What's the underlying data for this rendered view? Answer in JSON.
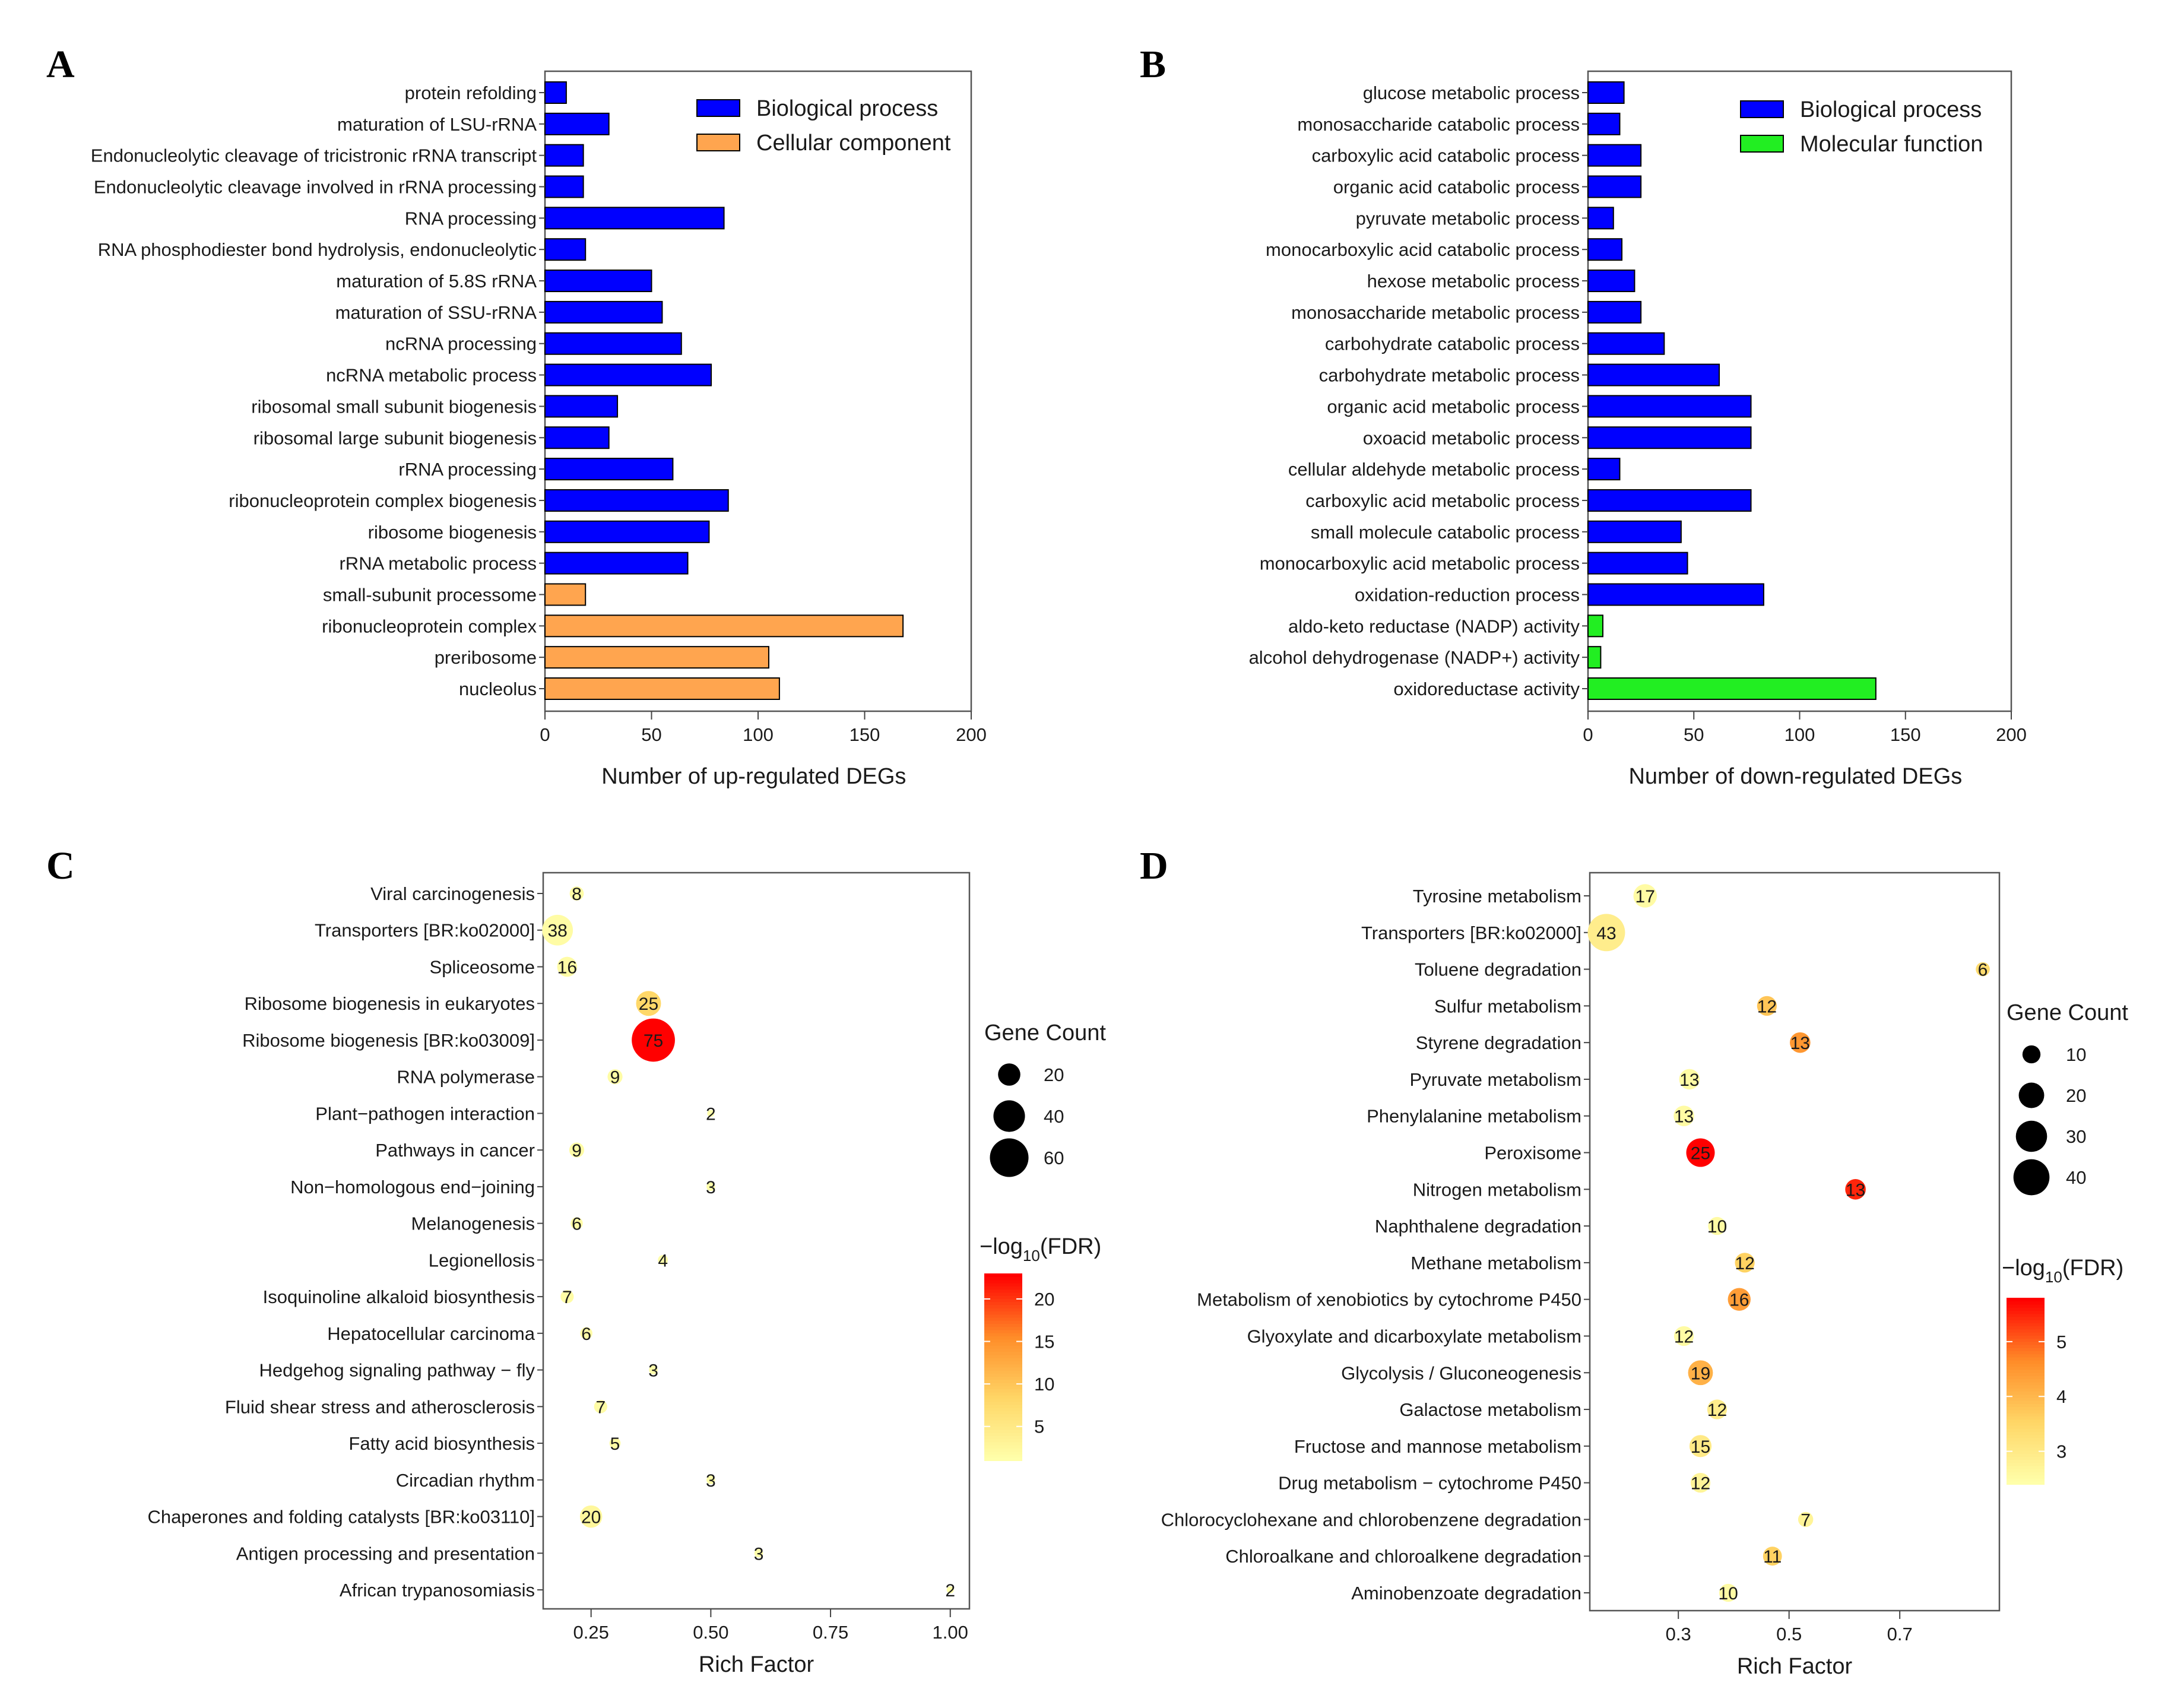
{
  "figure_panels": [
    "A",
    "B",
    "C",
    "D"
  ],
  "chart_data": [
    {
      "panel": "A",
      "type": "bar",
      "orientation": "horizontal",
      "xlabel": "Number of up-regulated DEGs",
      "xlim": [
        0,
        200
      ],
      "xticks": [
        "0",
        "50",
        "100",
        "150",
        "200"
      ],
      "legend_position": "top-right",
      "series": [
        {
          "name": "Biological process",
          "color": "#0000ff"
        },
        {
          "name": "Cellular component",
          "color": "#ffa54f"
        }
      ],
      "categories": [
        "protein refolding",
        "maturation of LSU-rRNA",
        "Endonucleolytic cleavage of tricistronic rRNA transcript",
        "Endonucleolytic cleavage involved in rRNA processing",
        "RNA processing",
        "RNA phosphodiester bond hydrolysis, endonucleolytic",
        "maturation of 5.8S rRNA",
        "maturation of SSU-rRNA",
        "ncRNA processing",
        "ncRNA metabolic process",
        "ribosomal small subunit biogenesis",
        "ribosomal large subunit biogenesis",
        "rRNA processing",
        "ribonucleoprotein complex biogenesis",
        "ribosome biogenesis",
        "rRNA metabolic process",
        "small-subunit processome",
        "ribonucleoprotein complex",
        "preribosome",
        "nucleolus"
      ],
      "values": [
        10,
        30,
        18,
        18,
        84,
        19,
        50,
        55,
        64,
        78,
        34,
        30,
        60,
        86,
        77,
        67,
        19,
        168,
        105,
        110
      ],
      "series_index": [
        0,
        0,
        0,
        0,
        0,
        0,
        0,
        0,
        0,
        0,
        0,
        0,
        0,
        0,
        0,
        0,
        1,
        1,
        1,
        1
      ]
    },
    {
      "panel": "B",
      "type": "bar",
      "orientation": "horizontal",
      "xlabel": "Number of down-regulated DEGs",
      "xlim": [
        0,
        200
      ],
      "xticks": [
        "0",
        "50",
        "100",
        "150",
        "200"
      ],
      "legend_position": "top-right",
      "series": [
        {
          "name": "Biological process",
          "color": "#0000ff"
        },
        {
          "name": "Molecular function",
          "color": "#22ee22"
        }
      ],
      "categories": [
        "glucose metabolic process",
        "monosaccharide catabolic process",
        "carboxylic acid catabolic process",
        "organic acid catabolic process",
        "pyruvate metabolic process",
        "monocarboxylic acid catabolic process",
        "hexose metabolic process",
        "monosaccharide metabolic process",
        "carbohydrate catabolic process",
        "carbohydrate metabolic process",
        "organic acid metabolic process",
        "oxoacid metabolic process",
        "cellular aldehyde metabolic process",
        "carboxylic acid metabolic process",
        "small molecule catabolic process",
        "monocarboxylic acid metabolic process",
        "oxidation-reduction process",
        "aldo-keto reductase (NADP) activity",
        "alcohol dehydrogenase (NADP+) activity",
        "oxidoreductase activity"
      ],
      "values": [
        17,
        15,
        25,
        25,
        12,
        16,
        22,
        25,
        36,
        62,
        77,
        77,
        15,
        77,
        44,
        47,
        83,
        7,
        6,
        136
      ],
      "series_index": [
        0,
        0,
        0,
        0,
        0,
        0,
        0,
        0,
        0,
        0,
        0,
        0,
        0,
        0,
        0,
        0,
        0,
        1,
        1,
        1
      ]
    },
    {
      "panel": "C",
      "type": "scatter",
      "xlabel": "Rich Factor",
      "xlim": [
        0.15,
        1.04
      ],
      "xticks": [
        0.25,
        0.5,
        0.75,
        1.0
      ],
      "xtick_labels": [
        "0.25",
        "0.50",
        "0.75",
        "1.00"
      ],
      "size_legend_title": "Gene Count",
      "size_legend": [
        20,
        40,
        60
      ],
      "color_legend_title": "−log",
      "color_legend_subscript": "10",
      "color_legend_suffix": "(FDR)",
      "color_range": [
        1,
        23
      ],
      "color_ticks": [
        5,
        10,
        15,
        20
      ],
      "categories": [
        "Viral carcinogenesis",
        "Transporters [BR:ko02000]",
        "Spliceosome",
        "Ribosome biogenesis in eukaryotes",
        "Ribosome biogenesis [BR:ko03009]",
        "RNA polymerase",
        "Plant−pathogen interaction",
        "Pathways in cancer",
        "Non−homologous end−joining",
        "Melanogenesis",
        "Legionellosis",
        "Isoquinoline alkaloid biosynthesis",
        "Hepatocellular carcinoma",
        "Hedgehog signaling pathway − fly",
        "Fluid shear stress and atherosclerosis",
        "Fatty acid biosynthesis",
        "Circadian rhythm",
        "Chaperones and folding catalysts [BR:ko03110]",
        "Antigen processing and presentation",
        "African trypanosomiasis"
      ],
      "x": [
        0.22,
        0.18,
        0.2,
        0.37,
        0.38,
        0.3,
        0.5,
        0.22,
        0.5,
        0.22,
        0.4,
        0.2,
        0.24,
        0.38,
        0.27,
        0.3,
        0.5,
        0.25,
        0.6,
        1.0
      ],
      "counts": [
        8,
        38,
        16,
        25,
        75,
        9,
        2,
        9,
        3,
        6,
        4,
        7,
        6,
        3,
        7,
        5,
        3,
        20,
        3,
        2
      ],
      "neg_log10_fdr": [
        1.5,
        1.5,
        1.5,
        8,
        23,
        1.5,
        1,
        1.5,
        1,
        1.5,
        1,
        1.5,
        1.5,
        1,
        1.5,
        1.5,
        1,
        2.5,
        1,
        1
      ]
    },
    {
      "panel": "D",
      "type": "scatter",
      "xlabel": "Rich Factor",
      "xlim": [
        0.14,
        0.88
      ],
      "xticks": [
        0.3,
        0.5,
        0.7
      ],
      "xtick_labels": [
        "0.3",
        "0.5",
        "0.7"
      ],
      "size_legend_title": "Gene Count",
      "size_legend": [
        10,
        20,
        30,
        40
      ],
      "color_legend_title": "−log",
      "color_legend_subscript": "10",
      "color_legend_suffix": "(FDR)",
      "color_range": [
        2.4,
        5.8
      ],
      "color_ticks": [
        3,
        4,
        5
      ],
      "categories": [
        "Tyrosine metabolism",
        "Transporters [BR:ko02000]",
        "Toluene degradation",
        "Sulfur metabolism",
        "Styrene degradation",
        "Pyruvate metabolism",
        "Phenylalanine metabolism",
        "Peroxisome",
        "Nitrogen metabolism",
        "Naphthalene degradation",
        "Methane metabolism",
        "Metabolism of xenobiotics by cytochrome P450",
        "Glyoxylate and dicarboxylate metabolism",
        "Glycolysis / Gluconeogenesis",
        "Galactose metabolism",
        "Fructose and mannose metabolism",
        "Drug metabolism − cytochrome P450",
        "Chlorocyclohexane and chlorobenzene degradation",
        "Chloroalkane and chloroalkene degradation",
        "Aminobenzoate degradation"
      ],
      "x": [
        0.24,
        0.17,
        0.85,
        0.46,
        0.52,
        0.32,
        0.31,
        0.34,
        0.62,
        0.37,
        0.42,
        0.41,
        0.31,
        0.34,
        0.37,
        0.34,
        0.34,
        0.53,
        0.47,
        0.39
      ],
      "counts": [
        17,
        43,
        6,
        12,
        13,
        13,
        13,
        25,
        13,
        10,
        12,
        16,
        12,
        19,
        12,
        15,
        12,
        7,
        11,
        10
      ],
      "neg_log10_fdr": [
        2.5,
        2.9,
        3.4,
        3.8,
        4.5,
        2.5,
        2.5,
        5.8,
        5.5,
        2.5,
        3.6,
        4.4,
        2.5,
        4.1,
        2.9,
        3.0,
        2.7,
        2.7,
        3.6,
        2.5
      ]
    }
  ]
}
